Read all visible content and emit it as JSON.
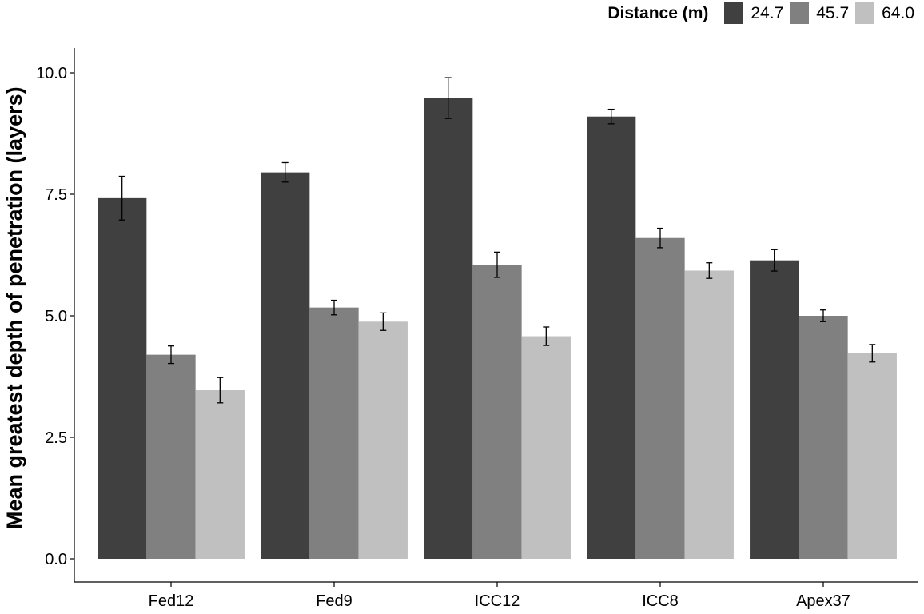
{
  "chart_data": {
    "type": "bar",
    "title": "",
    "xlabel": "",
    "ylabel": "Mean greatest depth of penetration (layers)",
    "categories": [
      "Fed12",
      "Fed9",
      "ICC12",
      "ICC8",
      "Apex37"
    ],
    "legend_title": "Distance (m)",
    "legend_position": "top-right",
    "ylim": [
      0,
      10.5
    ],
    "yticks": [
      "0.0",
      "2.5",
      "5.0",
      "7.5",
      "10.0"
    ],
    "ytick_values": [
      0,
      2.5,
      5,
      7.5,
      10
    ],
    "grid": false,
    "series": [
      {
        "name": "24.7",
        "color": "#404040",
        "values": [
          7.42,
          7.95,
          9.48,
          9.1,
          6.14
        ],
        "errors": [
          0.45,
          0.2,
          0.42,
          0.15,
          0.22
        ]
      },
      {
        "name": "45.7",
        "color": "#808080",
        "values": [
          4.2,
          5.17,
          6.05,
          6.6,
          5.0
        ],
        "errors": [
          0.18,
          0.15,
          0.26,
          0.2,
          0.12
        ]
      },
      {
        "name": "64.0",
        "color": "#c0c0c0",
        "values": [
          3.47,
          4.88,
          4.58,
          5.93,
          4.23
        ],
        "errors": [
          0.26,
          0.18,
          0.19,
          0.16,
          0.18
        ]
      }
    ]
  }
}
